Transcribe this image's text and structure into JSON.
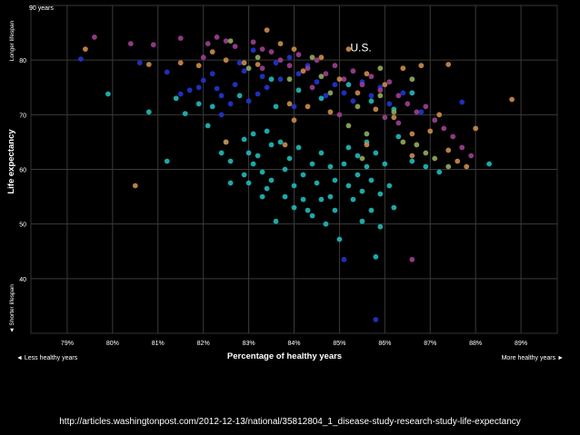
{
  "chart_data": {
    "type": "scatter",
    "xlabel": "Percentage of healthy years",
    "ylabel": "Life expectancy",
    "x_ticks": [
      "79%",
      "80%",
      "81%",
      "82%",
      "83%",
      "84%",
      "85%",
      "86%",
      "87%",
      "88%",
      "89%"
    ],
    "y_ticks": [
      "90 years",
      "80",
      "70",
      "60",
      "50",
      "40"
    ],
    "xlim": [
      78.2,
      89.8
    ],
    "ylim": [
      30,
      90
    ],
    "y_top_caption": "Longer lifespan",
    "y_bottom_caption": "◄ Shorter lifespan",
    "x_left_caption": "◄ Less healthy years",
    "x_right_caption": "More healthy years ►",
    "annotation": {
      "text": "U.S.",
      "x": 85.0,
      "y": 82.3
    },
    "grid": true,
    "colors": {
      "teal": "#1fb6b6",
      "blue": "#2233cc",
      "purple": "#9a3e8e",
      "orange": "#c8894a",
      "green": "#8ea85c"
    },
    "series": [
      {
        "color": "teal",
        "points": [
          [
            79.9,
            73.8
          ],
          [
            80.8,
            70.5
          ],
          [
            81.2,
            61.5
          ],
          [
            81.4,
            73.0
          ],
          [
            81.6,
            70.2
          ],
          [
            81.9,
            72.0
          ],
          [
            82.1,
            68.0
          ],
          [
            82.2,
            71.5
          ],
          [
            82.4,
            63.0
          ],
          [
            82.5,
            65.0
          ],
          [
            82.6,
            61.5
          ],
          [
            82.6,
            57.5
          ],
          [
            82.9,
            65.5
          ],
          [
            82.9,
            59.0
          ],
          [
            83.0,
            57.5
          ],
          [
            83.0,
            63.0
          ],
          [
            83.1,
            61.0
          ],
          [
            83.1,
            66.5
          ],
          [
            83.2,
            62.5
          ],
          [
            83.3,
            59.5
          ],
          [
            83.3,
            55.0
          ],
          [
            83.4,
            67.0
          ],
          [
            83.4,
            56.5
          ],
          [
            83.5,
            64.5
          ],
          [
            83.5,
            58.0
          ],
          [
            83.6,
            50.5
          ],
          [
            83.7,
            65.0
          ],
          [
            83.8,
            60.0
          ],
          [
            83.8,
            55.0
          ],
          [
            83.9,
            62.0
          ],
          [
            84.0,
            53.0
          ],
          [
            84.0,
            57.0
          ],
          [
            84.1,
            64.0
          ],
          [
            84.2,
            54.5
          ],
          [
            84.2,
            59.0
          ],
          [
            84.3,
            52.5
          ],
          [
            84.4,
            51.5
          ],
          [
            84.4,
            61.0
          ],
          [
            84.5,
            57.5
          ],
          [
            84.6,
            63.0
          ],
          [
            84.6,
            54.5
          ],
          [
            84.7,
            50.0
          ],
          [
            84.8,
            55.0
          ],
          [
            84.8,
            60.5
          ],
          [
            84.9,
            52.5
          ],
          [
            84.9,
            58.0
          ],
          [
            85.0,
            47.2
          ],
          [
            85.1,
            61.0
          ],
          [
            85.2,
            57.0
          ],
          [
            85.2,
            64.0
          ],
          [
            85.3,
            54.5
          ],
          [
            85.4,
            59.0
          ],
          [
            85.4,
            62.5
          ],
          [
            85.5,
            50.5
          ],
          [
            85.5,
            56.0
          ],
          [
            85.6,
            60.5
          ],
          [
            85.6,
            65.0
          ],
          [
            85.7,
            52.5
          ],
          [
            85.7,
            58.0
          ],
          [
            85.8,
            63.0
          ],
          [
            85.8,
            44.0
          ],
          [
            85.9,
            55.5
          ],
          [
            85.9,
            49.5
          ],
          [
            86.0,
            61.0
          ],
          [
            86.1,
            57.0
          ],
          [
            86.2,
            53.0
          ],
          [
            86.3,
            66.0
          ],
          [
            86.6,
            61.5
          ],
          [
            86.9,
            60.5
          ],
          [
            87.2,
            59.5
          ],
          [
            88.3,
            61.0
          ],
          [
            83.5,
            76.5
          ],
          [
            84.1,
            74.5
          ],
          [
            84.6,
            73.0
          ],
          [
            85.2,
            75.5
          ],
          [
            85.7,
            72.5
          ],
          [
            86.2,
            71.0
          ],
          [
            86.6,
            74.0
          ],
          [
            82.8,
            73.5
          ],
          [
            83.6,
            71.5
          ]
        ]
      },
      {
        "color": "blue",
        "points": [
          [
            79.3,
            80.2
          ],
          [
            80.6,
            79.5
          ],
          [
            81.2,
            77.8
          ],
          [
            81.5,
            73.8
          ],
          [
            81.7,
            74.5
          ],
          [
            81.9,
            75.0
          ],
          [
            82.0,
            76.3
          ],
          [
            82.2,
            77.5
          ],
          [
            82.3,
            74.8
          ],
          [
            82.4,
            73.5
          ],
          [
            82.6,
            72.0
          ],
          [
            82.7,
            75.5
          ],
          [
            82.8,
            79.5
          ],
          [
            82.9,
            78.0
          ],
          [
            83.0,
            72.5
          ],
          [
            83.1,
            81.8
          ],
          [
            83.3,
            77.0
          ],
          [
            83.4,
            75.0
          ],
          [
            83.6,
            79.5
          ],
          [
            83.7,
            76.5
          ],
          [
            83.9,
            80.5
          ],
          [
            84.1,
            77.5
          ],
          [
            84.3,
            79.0
          ],
          [
            84.5,
            76.0
          ],
          [
            84.7,
            73.5
          ],
          [
            84.9,
            75.5
          ],
          [
            85.1,
            74.0
          ],
          [
            85.3,
            72.5
          ],
          [
            85.5,
            76.0
          ],
          [
            85.7,
            73.5
          ],
          [
            85.9,
            75.0
          ],
          [
            86.1,
            72.0
          ],
          [
            86.4,
            74.0
          ],
          [
            86.8,
            70.5
          ],
          [
            87.7,
            72.3
          ],
          [
            85.1,
            43.5
          ],
          [
            85.8,
            32.5
          ],
          [
            84.0,
            71.5
          ],
          [
            82.4,
            70.0
          ],
          [
            83.2,
            73.8
          ]
        ]
      },
      {
        "color": "purple",
        "points": [
          [
            79.6,
            84.2
          ],
          [
            80.4,
            83.0
          ],
          [
            80.9,
            82.8
          ],
          [
            81.5,
            84.0
          ],
          [
            82.1,
            83.0
          ],
          [
            82.3,
            84.2
          ],
          [
            82.5,
            83.5
          ],
          [
            82.7,
            82.5
          ],
          [
            83.1,
            83.3
          ],
          [
            83.3,
            82.0
          ],
          [
            83.5,
            81.5
          ],
          [
            83.7,
            80.0
          ],
          [
            83.9,
            79.0
          ],
          [
            84.1,
            81.0
          ],
          [
            84.3,
            78.5
          ],
          [
            84.5,
            80.0
          ],
          [
            84.7,
            77.5
          ],
          [
            84.9,
            79.0
          ],
          [
            85.1,
            76.5
          ],
          [
            85.3,
            78.0
          ],
          [
            85.5,
            75.5
          ],
          [
            85.7,
            77.0
          ],
          [
            85.9,
            74.5
          ],
          [
            86.1,
            76.0
          ],
          [
            86.3,
            73.5
          ],
          [
            86.5,
            72.0
          ],
          [
            86.7,
            70.5
          ],
          [
            86.9,
            71.5
          ],
          [
            87.1,
            69.0
          ],
          [
            87.3,
            67.5
          ],
          [
            87.5,
            66.0
          ],
          [
            87.7,
            64.0
          ],
          [
            87.9,
            62.5
          ],
          [
            86.3,
            68.5
          ],
          [
            86.6,
            43.5
          ],
          [
            84.4,
            75.0
          ],
          [
            85.0,
            70.0
          ],
          [
            86.0,
            69.5
          ],
          [
            83.3,
            78.5
          ],
          [
            82.0,
            80.5
          ]
        ]
      },
      {
        "color": "orange",
        "points": [
          [
            79.4,
            82.0
          ],
          [
            80.5,
            57.0
          ],
          [
            80.8,
            79.2
          ],
          [
            81.5,
            79.5
          ],
          [
            81.9,
            79.0
          ],
          [
            82.2,
            81.5
          ],
          [
            82.5,
            80.0
          ],
          [
            82.9,
            79.5
          ],
          [
            83.2,
            79.2
          ],
          [
            83.4,
            85.5
          ],
          [
            83.7,
            83.0
          ],
          [
            84.0,
            82.0
          ],
          [
            84.2,
            78.0
          ],
          [
            84.3,
            71.5
          ],
          [
            84.6,
            80.5
          ],
          [
            84.8,
            70.5
          ],
          [
            85.0,
            76.5
          ],
          [
            85.2,
            82.0
          ],
          [
            85.4,
            74.0
          ],
          [
            85.6,
            77.5
          ],
          [
            85.8,
            71.0
          ],
          [
            86.0,
            75.5
          ],
          [
            86.2,
            69.5
          ],
          [
            86.4,
            78.5
          ],
          [
            86.6,
            66.5
          ],
          [
            86.8,
            79.0
          ],
          [
            87.0,
            67.0
          ],
          [
            87.2,
            70.0
          ],
          [
            87.4,
            63.5
          ],
          [
            87.6,
            61.5
          ],
          [
            87.8,
            60.5
          ],
          [
            88.0,
            67.5
          ],
          [
            88.8,
            72.8
          ],
          [
            84.0,
            69.0
          ],
          [
            85.6,
            64.5
          ],
          [
            86.6,
            62.5
          ],
          [
            87.4,
            79.2
          ],
          [
            82.5,
            65.0
          ],
          [
            83.8,
            64.5
          ],
          [
            83.9,
            72.0
          ]
        ]
      },
      {
        "color": "green",
        "points": [
          [
            82.6,
            83.5
          ],
          [
            83.0,
            78.5
          ],
          [
            83.9,
            76.5
          ],
          [
            84.4,
            80.5
          ],
          [
            84.8,
            74.0
          ],
          [
            85.2,
            68.0
          ],
          [
            85.4,
            71.5
          ],
          [
            85.6,
            66.5
          ],
          [
            85.9,
            73.5
          ],
          [
            86.2,
            70.5
          ],
          [
            86.4,
            65.0
          ],
          [
            86.7,
            64.5
          ],
          [
            86.9,
            63.0
          ],
          [
            87.1,
            62.0
          ],
          [
            87.4,
            60.5
          ],
          [
            85.5,
            62.0
          ],
          [
            84.6,
            77.0
          ],
          [
            83.2,
            80.5
          ],
          [
            85.9,
            78.5
          ],
          [
            86.6,
            76.5
          ]
        ]
      }
    ]
  },
  "footer": {
    "source_url": "http://articles.washingtonpost.com/2012-12-13/national/35812804_1_disease-study-research-study-life-expectancy"
  }
}
